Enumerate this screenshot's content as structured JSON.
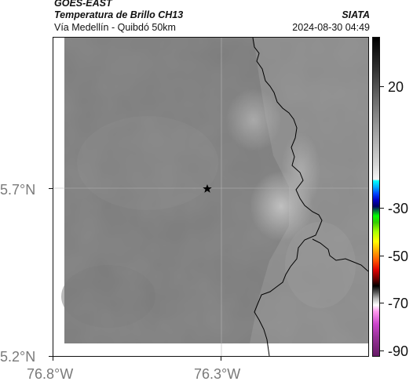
{
  "header": {
    "satellite": "GOES-EAST",
    "product": "Temperatura de Brillo CH13",
    "region": "Vía Medellín - Quibdó 50km",
    "agency": "SIATA",
    "timestamp": "2024-08-30 04:49"
  },
  "axes": {
    "lat_ticks": [
      "5.7°N",
      "5.2°N"
    ],
    "lon_ticks": [
      "76.8°W",
      "76.3°W"
    ]
  },
  "colorbar": {
    "ticks": [
      "20",
      "-30",
      "-50",
      "-70",
      "-90"
    ],
    "colors": {
      "warm_top": "#000000",
      "gray_mid": "#a3a3a3",
      "cyan": "#00ffff",
      "blue": "#0000c8",
      "green": "#00ff00",
      "yellow": "#ffff00",
      "orange": "#ffaa00",
      "red": "#dd0000",
      "magenta": "#cc44cc"
    }
  },
  "map": {
    "marker": "star-icon",
    "background_color": "#7d7d7d",
    "boundary_color": "#000000"
  }
}
